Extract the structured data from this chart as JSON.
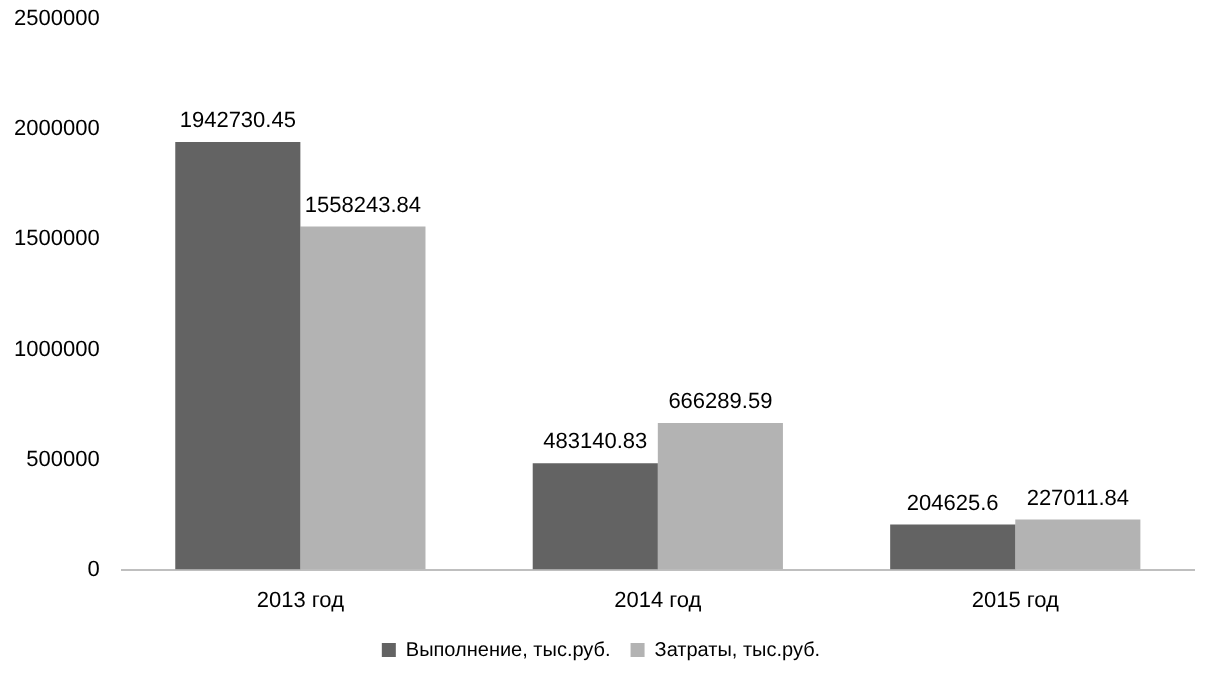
{
  "chart_data": {
    "type": "bar",
    "categories": [
      "2013 год",
      "2014 год",
      "2015 год"
    ],
    "series": [
      {
        "name": "Выполнение, тыс.руб.",
        "color": "#636363",
        "values": [
          1942730.45,
          483140.83,
          204625.6
        ]
      },
      {
        "name": "Затраты, тыс.руб.",
        "color": "#b3b3b3",
        "values": [
          1558243.84,
          666289.59,
          227011.84
        ]
      }
    ],
    "ylim": [
      0,
      2500000
    ],
    "yticks": [
      0,
      500000,
      1000000,
      1500000,
      2000000,
      2500000
    ],
    "grid": false,
    "legend": "bottom",
    "data_labels": true
  }
}
